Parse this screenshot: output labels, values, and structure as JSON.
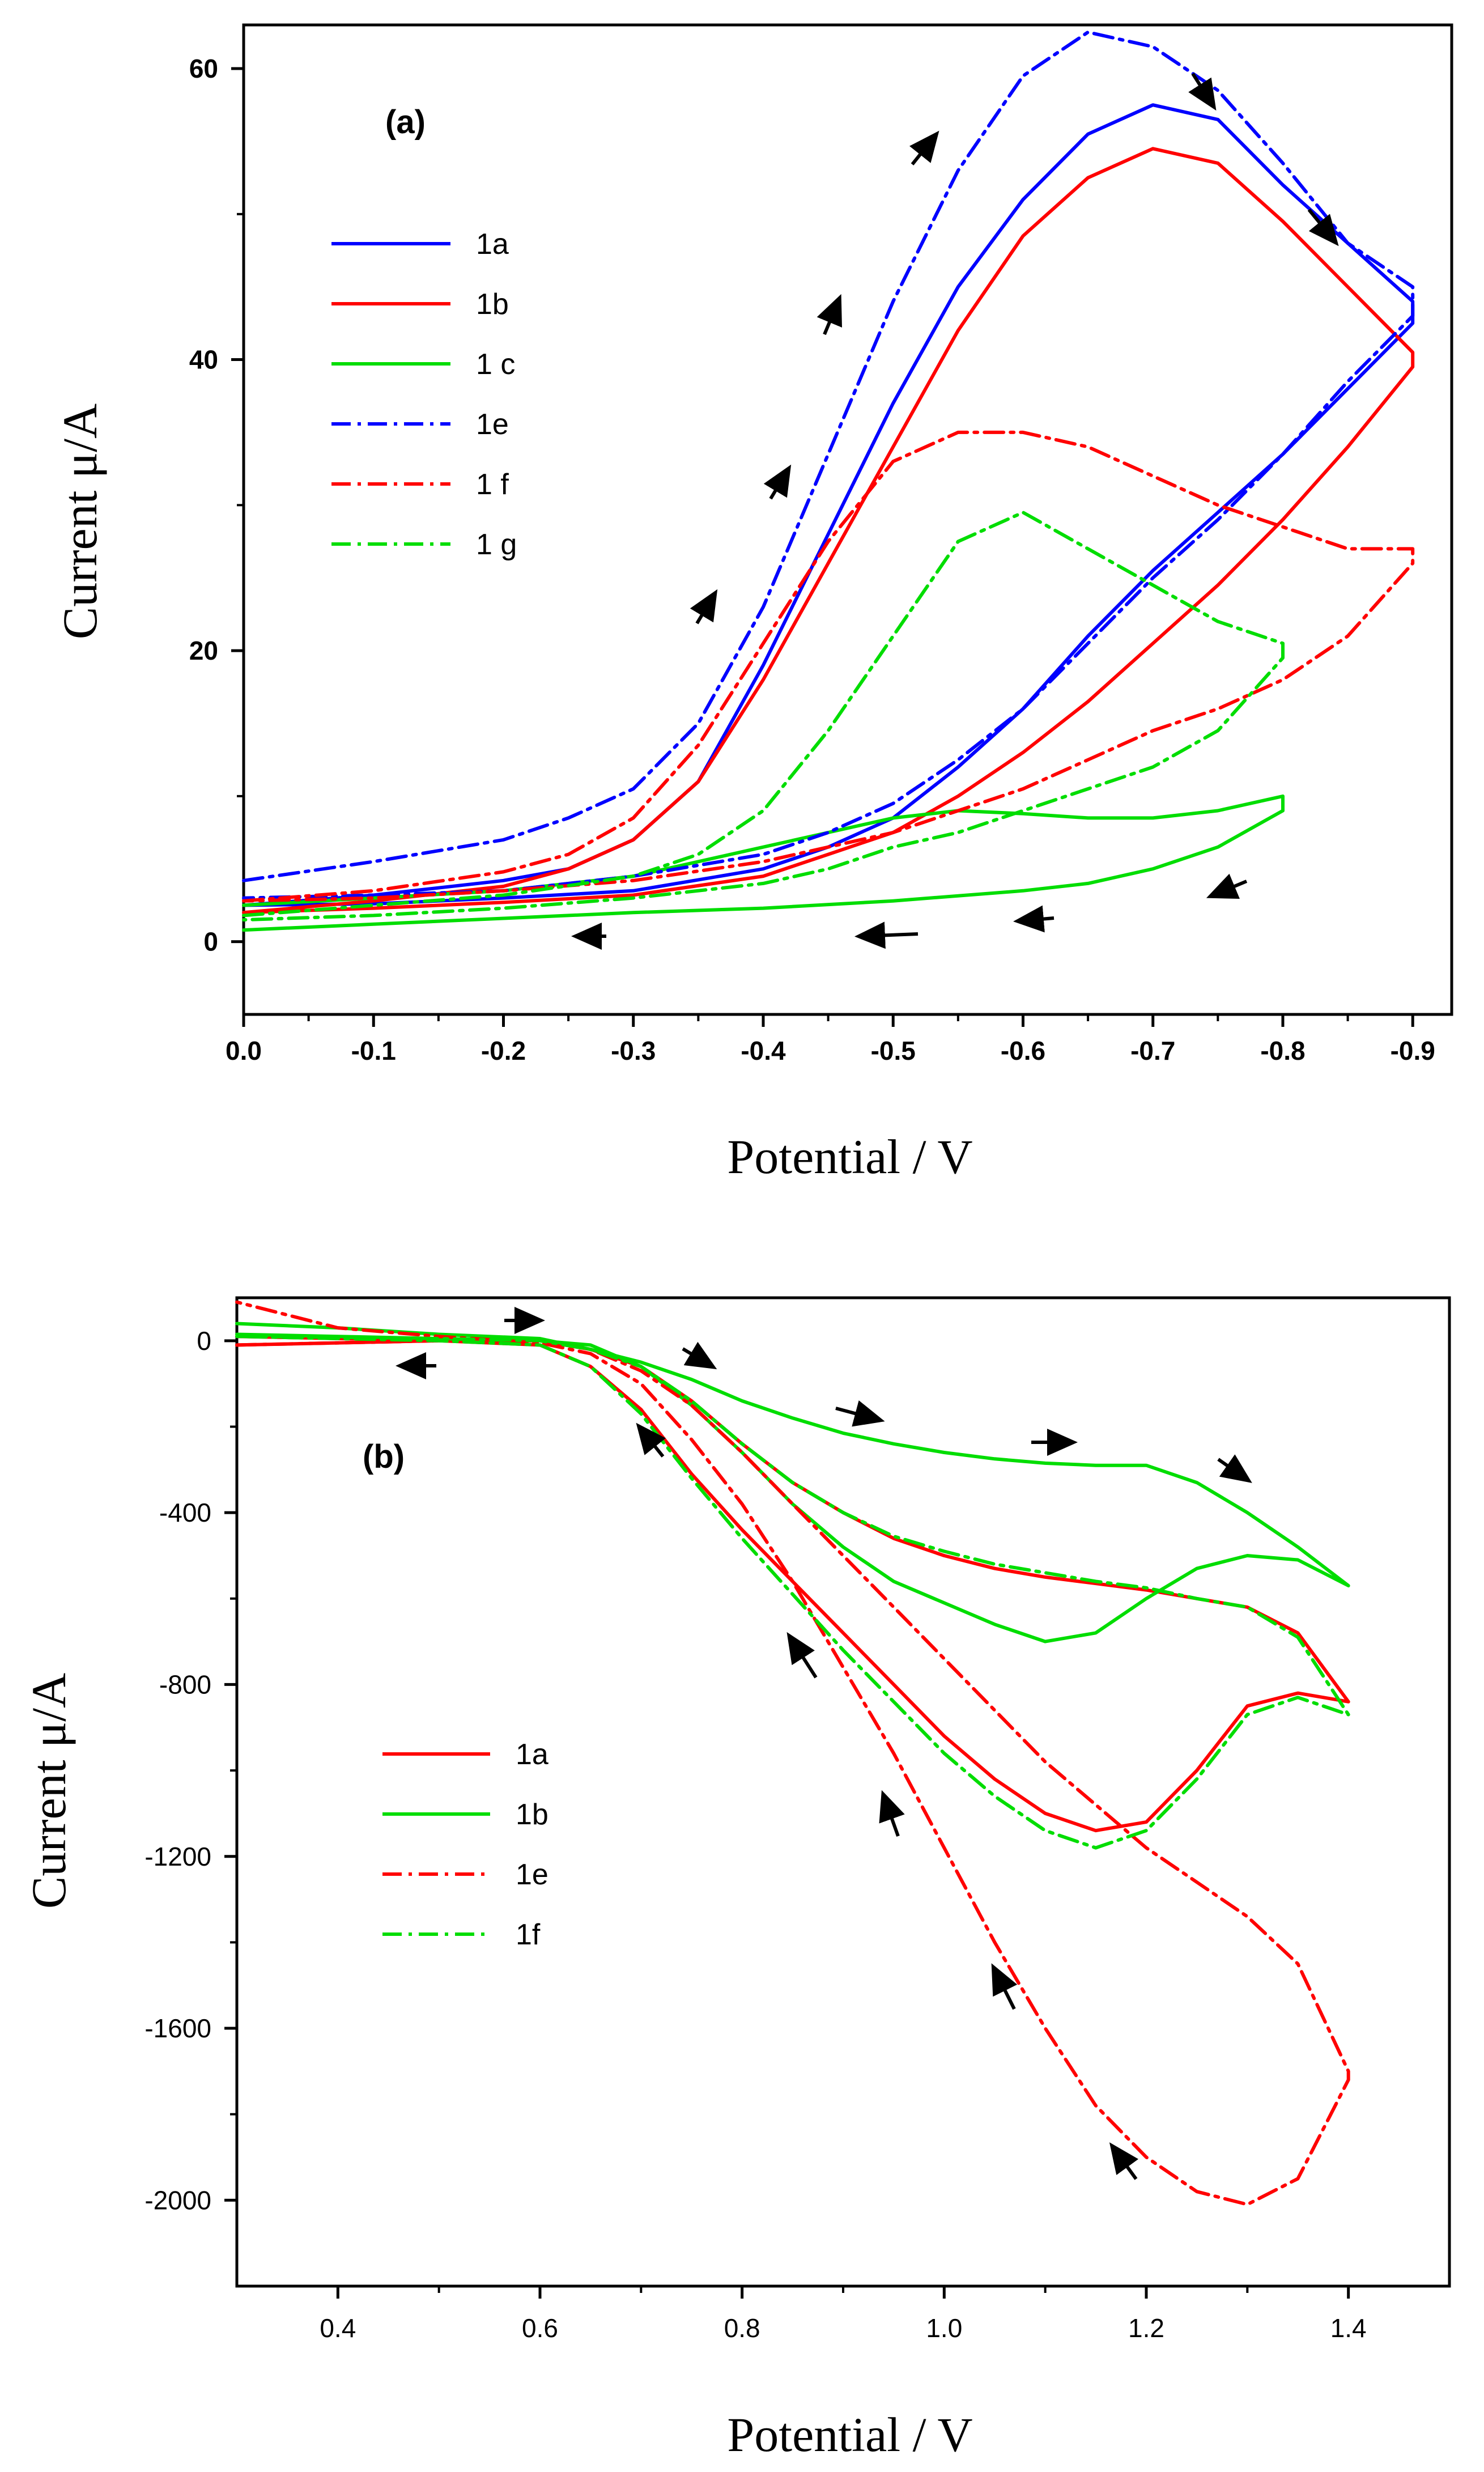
{
  "chart_data": [
    {
      "type": "line",
      "panel_label": "(a)",
      "xlabel": "Potential / V",
      "ylabel": "Current μ/A",
      "xlim": [
        0.0,
        -0.93
      ],
      "ylim": [
        -5,
        63
      ],
      "x_ticks": [
        0.0,
        -0.1,
        -0.2,
        -0.3,
        -0.4,
        -0.5,
        -0.6,
        -0.7,
        -0.8,
        -0.9
      ],
      "x_tick_labels": [
        "0.0",
        "-0.1",
        "-0.2",
        "-0.3",
        "-0.4",
        "-0.5",
        "-0.6",
        "-0.7",
        "-0.8",
        "-0.9"
      ],
      "y_ticks": [
        0,
        20,
        40,
        60
      ],
      "y_tick_labels": [
        "0",
        "20",
        "40",
        "60"
      ],
      "legend_position": "upper-left",
      "series": [
        {
          "name": "1a",
          "color": "#0000ff",
          "dash": "solid",
          "x": [
            0.0,
            -0.1,
            -0.2,
            -0.25,
            -0.3,
            -0.35,
            -0.4,
            -0.45,
            -0.5,
            -0.55,
            -0.6,
            -0.65,
            -0.7,
            -0.75,
            -0.8,
            -0.85,
            -0.9,
            -0.9,
            -0.85,
            -0.8,
            -0.75,
            -0.7,
            -0.65,
            -0.6,
            -0.55,
            -0.5,
            -0.45,
            -0.4,
            -0.3,
            -0.2,
            -0.1,
            0.0
          ],
          "y": [
            2.5,
            3.2,
            4.2,
            5.0,
            7.0,
            11.0,
            19.0,
            28.0,
            37.0,
            45.0,
            51.0,
            55.5,
            57.5,
            56.5,
            52.0,
            48.0,
            44.0,
            42.5,
            38.0,
            33.5,
            29.5,
            25.5,
            21.0,
            16.0,
            12.0,
            8.5,
            6.5,
            5.0,
            3.5,
            3.0,
            2.6,
            2.5
          ]
        },
        {
          "name": "1b",
          "color": "#ff0000",
          "dash": "solid",
          "x": [
            0.0,
            -0.1,
            -0.2,
            -0.25,
            -0.3,
            -0.35,
            -0.4,
            -0.45,
            -0.5,
            -0.55,
            -0.6,
            -0.65,
            -0.7,
            -0.75,
            -0.8,
            -0.85,
            -0.9,
            -0.9,
            -0.85,
            -0.8,
            -0.75,
            -0.7,
            -0.65,
            -0.6,
            -0.55,
            -0.5,
            -0.45,
            -0.4,
            -0.3,
            -0.2,
            -0.1,
            0.0
          ],
          "y": [
            2.0,
            2.8,
            3.8,
            5.0,
            7.0,
            11.0,
            18.0,
            26.0,
            34.0,
            42.0,
            48.5,
            52.5,
            54.5,
            53.5,
            49.5,
            45.0,
            40.5,
            39.5,
            34.0,
            29.0,
            24.5,
            20.5,
            16.5,
            13.0,
            10.0,
            7.5,
            6.0,
            4.5,
            3.2,
            2.7,
            2.3,
            2.0
          ]
        },
        {
          "name": "1 c",
          "color": "#00dd00",
          "dash": "solid",
          "x": [
            0.0,
            -0.1,
            -0.2,
            -0.3,
            -0.4,
            -0.45,
            -0.5,
            -0.55,
            -0.6,
            -0.65,
            -0.7,
            -0.75,
            -0.8,
            -0.8,
            -0.75,
            -0.7,
            -0.65,
            -0.6,
            -0.5,
            -0.4,
            -0.3,
            -0.2,
            -0.1,
            0.0
          ],
          "y": [
            2.5,
            3.0,
            3.5,
            4.5,
            6.5,
            7.5,
            8.5,
            9.0,
            8.8,
            8.5,
            8.5,
            9.0,
            10.0,
            9.0,
            6.5,
            5.0,
            4.0,
            3.5,
            2.8,
            2.3,
            2.0,
            1.6,
            1.2,
            0.8
          ]
        },
        {
          "name": "1e",
          "color": "#0000ff",
          "dash": "dashdot",
          "x": [
            0.0,
            -0.1,
            -0.2,
            -0.25,
            -0.3,
            -0.35,
            -0.4,
            -0.45,
            -0.5,
            -0.55,
            -0.6,
            -0.65,
            -0.7,
            -0.75,
            -0.8,
            -0.85,
            -0.9,
            -0.9,
            -0.85,
            -0.8,
            -0.75,
            -0.7,
            -0.65,
            -0.6,
            -0.55,
            -0.5,
            -0.45,
            -0.4,
            -0.3,
            -0.2,
            -0.1,
            0.0
          ],
          "y": [
            4.2,
            5.5,
            7.0,
            8.5,
            10.5,
            15.0,
            23.0,
            33.5,
            44.0,
            53.0,
            59.5,
            62.5,
            61.5,
            58.5,
            53.5,
            48.0,
            45.0,
            43.0,
            38.5,
            33.5,
            29.0,
            25.0,
            20.5,
            16.0,
            12.5,
            9.5,
            7.5,
            6.0,
            4.5,
            3.5,
            3.2,
            3.0
          ]
        },
        {
          "name": "1 f",
          "color": "#ff0000",
          "dash": "dashdot",
          "x": [
            0.0,
            -0.1,
            -0.2,
            -0.25,
            -0.3,
            -0.35,
            -0.4,
            -0.45,
            -0.5,
            -0.55,
            -0.6,
            -0.65,
            -0.7,
            -0.75,
            -0.8,
            -0.85,
            -0.9,
            -0.9,
            -0.85,
            -0.8,
            -0.75,
            -0.7,
            -0.65,
            -0.6,
            -0.55,
            -0.5,
            -0.45,
            -0.4,
            -0.3,
            -0.2,
            -0.1,
            0.0
          ],
          "y": [
            2.8,
            3.5,
            4.8,
            6.0,
            8.5,
            13.5,
            20.5,
            27.5,
            33.0,
            35.0,
            35.0,
            34.0,
            32.0,
            30.0,
            28.5,
            27.0,
            27.0,
            26.0,
            21.0,
            18.0,
            16.0,
            14.5,
            12.5,
            10.5,
            9.0,
            7.5,
            6.5,
            5.5,
            4.2,
            3.5,
            3.0,
            2.8
          ]
        },
        {
          "name": "1 g",
          "color": "#00dd00",
          "dash": "dashdot",
          "x": [
            0.0,
            -0.1,
            -0.2,
            -0.3,
            -0.35,
            -0.4,
            -0.45,
            -0.5,
            -0.55,
            -0.6,
            -0.65,
            -0.7,
            -0.75,
            -0.8,
            -0.8,
            -0.75,
            -0.7,
            -0.65,
            -0.6,
            -0.55,
            -0.5,
            -0.45,
            -0.4,
            -0.3,
            -0.2,
            -0.1,
            0.0
          ],
          "y": [
            1.8,
            2.5,
            3.2,
            4.5,
            6.0,
            9.0,
            14.5,
            21.0,
            27.5,
            29.5,
            27.0,
            24.5,
            22.0,
            20.5,
            19.5,
            14.5,
            12.0,
            10.5,
            9.0,
            7.5,
            6.5,
            5.0,
            4.0,
            3.0,
            2.3,
            1.8,
            1.5
          ]
        }
      ]
    },
    {
      "type": "line",
      "panel_label": "(b)",
      "xlabel": "Potential / V",
      "ylabel": "Current μ/A",
      "xlim": [
        0.3,
        1.5
      ],
      "ylim": [
        -2200,
        100
      ],
      "x_ticks": [
        0.4,
        0.6,
        0.8,
        1.0,
        1.2,
        1.4
      ],
      "x_tick_labels": [
        "0.4",
        "0.6",
        "0.8",
        "1.0",
        "1.2",
        "1.4"
      ],
      "y_ticks": [
        0,
        -400,
        -800,
        -1200,
        -1600,
        -2000
      ],
      "y_tick_labels": [
        "0",
        "-400",
        "-800",
        "-1200",
        "-1600",
        "-2000"
      ],
      "legend_position": "center-left",
      "series": [
        {
          "name": "1a",
          "color": "#ff0000",
          "dash": "solid",
          "x": [
            0.3,
            0.4,
            0.5,
            0.6,
            0.65,
            0.7,
            0.75,
            0.8,
            0.85,
            0.9,
            0.95,
            1.0,
            1.05,
            1.1,
            1.15,
            1.2,
            1.25,
            1.3,
            1.35,
            1.4,
            1.35,
            1.3,
            1.25,
            1.2,
            1.15,
            1.1,
            1.05,
            1.0,
            0.95,
            0.9,
            0.85,
            0.8,
            0.75,
            0.7,
            0.65,
            0.6,
            0.5,
            0.4,
            0.3
          ],
          "y": [
            -10,
            -5,
            0,
            0,
            -20,
            -60,
            -140,
            -240,
            -330,
            -400,
            -460,
            -500,
            -530,
            -550,
            -565,
            -580,
            -600,
            -620,
            -680,
            -840,
            -820,
            -850,
            -1000,
            -1120,
            -1140,
            -1100,
            -1020,
            -920,
            -800,
            -680,
            -560,
            -440,
            -310,
            -160,
            -60,
            -10,
            0,
            5,
            10
          ]
        },
        {
          "name": "1b",
          "color": "#00dd00",
          "dash": "solid",
          "x": [
            0.3,
            0.4,
            0.5,
            0.6,
            0.65,
            0.7,
            0.75,
            0.8,
            0.85,
            0.9,
            0.95,
            1.0,
            1.05,
            1.1,
            1.15,
            1.2,
            1.25,
            1.3,
            1.35,
            1.4,
            1.35,
            1.3,
            1.25,
            1.2,
            1.15,
            1.1,
            1.05,
            1.0,
            0.95,
            0.9,
            0.85,
            0.8,
            0.75,
            0.7,
            0.65,
            0.6,
            0.5,
            0.4,
            0.3
          ],
          "y": [
            40,
            30,
            15,
            5,
            -20,
            -50,
            -90,
            -140,
            -180,
            -215,
            -240,
            -260,
            -275,
            -285,
            -290,
            -290,
            -330,
            -400,
            -480,
            -570,
            -510,
            -500,
            -530,
            -600,
            -680,
            -700,
            -660,
            -610,
            -560,
            -480,
            -380,
            -260,
            -150,
            -60,
            -10,
            0,
            5,
            10,
            15
          ]
        },
        {
          "name": "1e",
          "color": "#ff0000",
          "dash": "dashdot",
          "x": [
            0.3,
            0.4,
            0.5,
            0.6,
            0.65,
            0.7,
            0.75,
            0.8,
            0.85,
            0.9,
            0.95,
            1.0,
            1.05,
            1.1,
            1.15,
            1.2,
            1.25,
            1.3,
            1.35,
            1.4,
            1.4,
            1.35,
            1.3,
            1.25,
            1.2,
            1.15,
            1.1,
            1.05,
            1.0,
            0.95,
            0.9,
            0.85,
            0.8,
            0.75,
            0.7,
            0.65,
            0.6,
            0.5,
            0.4,
            0.3
          ],
          "y": [
            -10,
            -5,
            0,
            0,
            -20,
            -70,
            -150,
            -260,
            -380,
            -500,
            -620,
            -740,
            -860,
            -980,
            -1080,
            -1180,
            -1260,
            -1340,
            -1450,
            -1700,
            -1720,
            -1950,
            -2010,
            -1980,
            -1900,
            -1780,
            -1600,
            -1400,
            -1180,
            -960,
            -760,
            -560,
            -380,
            -230,
            -100,
            -30,
            -5,
            10,
            30,
            90
          ]
        },
        {
          "name": "1f",
          "color": "#00dd00",
          "dash": "dashdot",
          "x": [
            0.3,
            0.4,
            0.5,
            0.6,
            0.65,
            0.7,
            0.75,
            0.8,
            0.85,
            0.9,
            0.95,
            1.0,
            1.05,
            1.1,
            1.15,
            1.2,
            1.25,
            1.3,
            1.35,
            1.4,
            1.35,
            1.3,
            1.25,
            1.2,
            1.15,
            1.1,
            1.05,
            1.0,
            0.95,
            0.9,
            0.85,
            0.8,
            0.75,
            0.7,
            0.65,
            0.6,
            0.5,
            0.4,
            0.3
          ],
          "y": [
            10,
            8,
            5,
            0,
            -20,
            -60,
            -140,
            -240,
            -330,
            -400,
            -455,
            -490,
            -520,
            -540,
            -560,
            -575,
            -600,
            -620,
            -690,
            -870,
            -830,
            -870,
            -1020,
            -1140,
            -1180,
            -1140,
            -1060,
            -960,
            -840,
            -720,
            -590,
            -460,
            -320,
            -170,
            -60,
            -10,
            0,
            5,
            10
          ]
        }
      ]
    }
  ]
}
